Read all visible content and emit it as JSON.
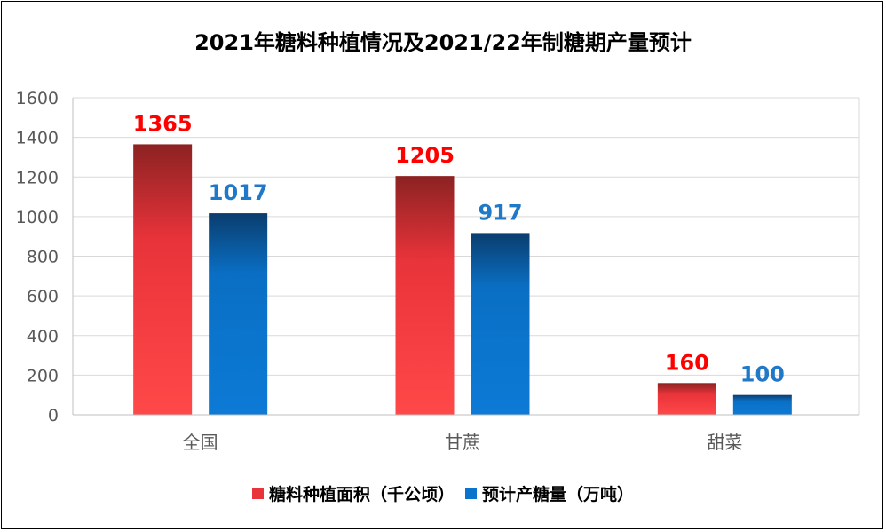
{
  "chart_data": {
    "type": "bar",
    "title": "2021年糖料种植情况及2021/22年制糖期产量预计",
    "categories": [
      "全国",
      "甘蔗",
      "甜菜"
    ],
    "series": [
      {
        "name": "糖料种植面积（千公顷）",
        "values": [
          1365,
          1205,
          160
        ],
        "color": "#e8333a",
        "label_color": "#ff0000"
      },
      {
        "name": "预计产糖量（万吨）",
        "values": [
          1017,
          917,
          100
        ],
        "color": "#0a74cc",
        "label_color": "#1f78c8"
      }
    ],
    "ylim": [
      0,
      1600
    ],
    "yticks": [
      0,
      200,
      400,
      600,
      800,
      1000,
      1200,
      1400,
      1600
    ],
    "grid": true,
    "legend_position": "bottom"
  }
}
